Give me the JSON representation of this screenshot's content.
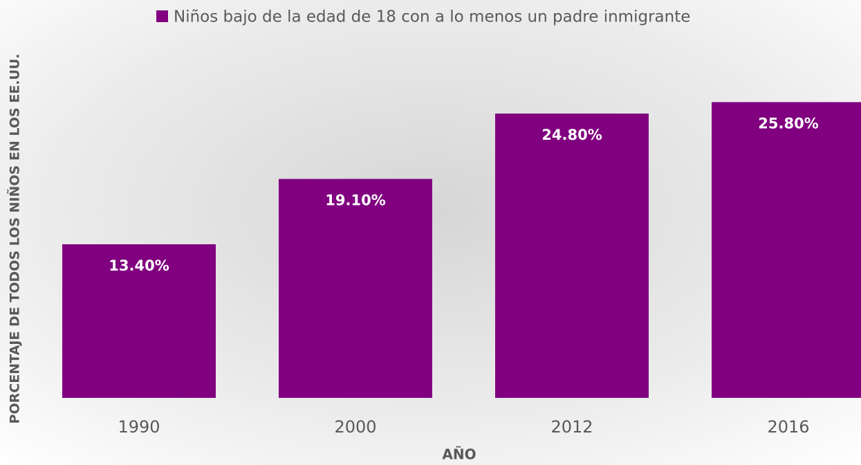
{
  "chart_data": {
    "type": "bar",
    "categories": [
      "1990",
      "2000",
      "2012",
      "2016"
    ],
    "series": [
      {
        "name": "Niños bajo de la edad de 18 con a lo menos un padre inmigrante",
        "color": "#800080",
        "values": [
          13.4,
          19.1,
          24.8,
          25.8
        ],
        "value_labels": [
          "13.40%",
          "19.10%",
          "24.80%",
          "25.80%"
        ]
      }
    ],
    "xlabel": "AÑO",
    "ylabel": "PORCENTAJE DE TODOS LOS NIÑOS EN LOS EE.UU.",
    "ylim": [
      0,
      30
    ],
    "legend": "top"
  }
}
